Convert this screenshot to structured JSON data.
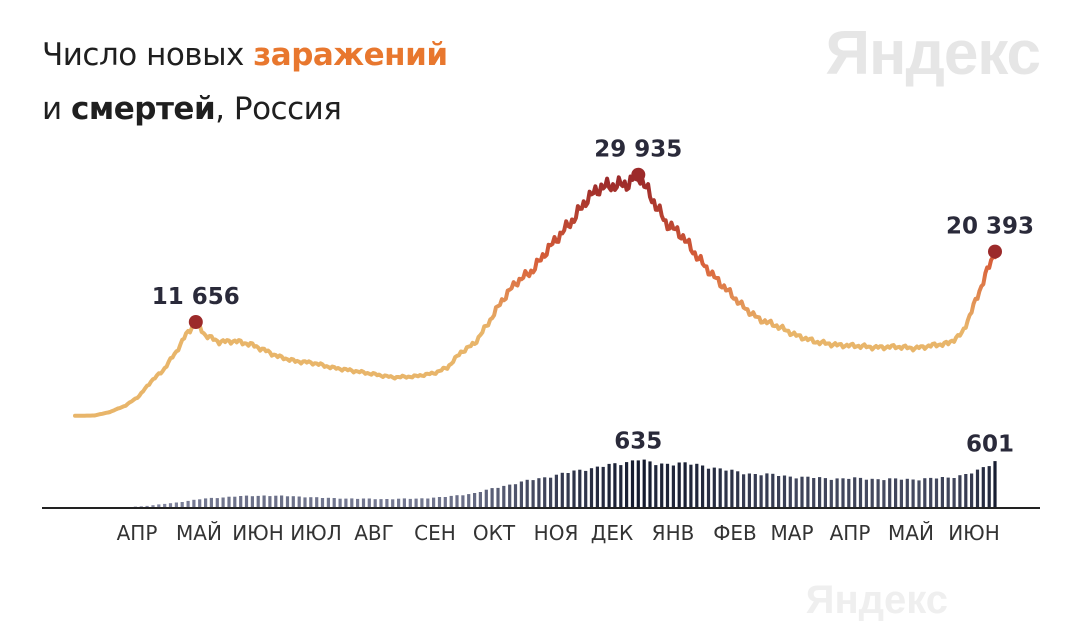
{
  "title": {
    "line1_prefix": "Число новых ",
    "line1_highlight": "заражений",
    "line2_prefix": "и ",
    "line2_highlight": "смертей",
    "line2_suffix": ", Россия"
  },
  "logo": "Яндекс",
  "colors": {
    "low": "#e8b56a",
    "mid": "#d9613a",
    "high": "#9c2a2a",
    "deaths_low": "#8a8ea8",
    "deaths_high": "#141a2e",
    "axis": "#222222"
  },
  "chart_data": {
    "type": "line",
    "x_ticks": [
      "АПР",
      "МАЙ",
      "ИЮН",
      "ИЮЛ",
      "АВГ",
      "СЕН",
      "ОКТ",
      "НОЯ",
      "ДЕК",
      "ЯНВ",
      "ФЕВ",
      "МАР",
      "АПР",
      "МАЙ",
      "ИЮН"
    ],
    "series": [
      {
        "name": "заражений",
        "type": "line",
        "points": [
          [
            "2020-03-10",
            20
          ],
          [
            "2020-03-20",
            60
          ],
          [
            "2020-03-28",
            500
          ],
          [
            "2020-04-05",
            1300
          ],
          [
            "2020-04-12",
            2500
          ],
          [
            "2020-04-18",
            4300
          ],
          [
            "2020-04-24",
            5600
          ],
          [
            "2020-05-01",
            8000
          ],
          [
            "2020-05-06",
            10100
          ],
          [
            "2020-05-11",
            11656
          ],
          [
            "2020-05-16",
            10000
          ],
          [
            "2020-05-23",
            9200
          ],
          [
            "2020-05-31",
            9300
          ],
          [
            "2020-06-08",
            8900
          ],
          [
            "2020-06-15",
            8200
          ],
          [
            "2020-06-22",
            7400
          ],
          [
            "2020-07-01",
            6800
          ],
          [
            "2020-07-10",
            6600
          ],
          [
            "2020-07-20",
            6000
          ],
          [
            "2020-07-31",
            5600
          ],
          [
            "2020-08-10",
            5200
          ],
          [
            "2020-08-20",
            4800
          ],
          [
            "2020-08-31",
            4900
          ],
          [
            "2020-09-10",
            5300
          ],
          [
            "2020-09-17",
            6000
          ],
          [
            "2020-09-24",
            7900
          ],
          [
            "2020-10-01",
            9000
          ],
          [
            "2020-10-08",
            11500
          ],
          [
            "2020-10-15",
            14300
          ],
          [
            "2020-10-22",
            16500
          ],
          [
            "2020-10-31",
            18100
          ],
          [
            "2020-11-07",
            20500
          ],
          [
            "2020-11-14",
            22500
          ],
          [
            "2020-11-21",
            24500
          ],
          [
            "2020-11-28",
            27000
          ],
          [
            "2020-12-05",
            28400
          ],
          [
            "2020-12-12",
            28600
          ],
          [
            "2020-12-19",
            28800
          ],
          [
            "2020-12-24",
            29935
          ],
          [
            "2020-12-31",
            27000
          ],
          [
            "2021-01-07",
            24000
          ],
          [
            "2021-01-15",
            22500
          ],
          [
            "2021-01-24",
            19500
          ],
          [
            "2021-01-31",
            17500
          ],
          [
            "2021-02-08",
            15500
          ],
          [
            "2021-02-16",
            13500
          ],
          [
            "2021-02-24",
            12000
          ],
          [
            "2021-03-05",
            11200
          ],
          [
            "2021-03-15",
            10000
          ],
          [
            "2021-03-25",
            9200
          ],
          [
            "2021-04-05",
            8800
          ],
          [
            "2021-04-15",
            8700
          ],
          [
            "2021-04-25",
            8500
          ],
          [
            "2021-05-05",
            8600
          ],
          [
            "2021-05-15",
            8400
          ],
          [
            "2021-05-25",
            8800
          ],
          [
            "2021-06-01",
            9000
          ],
          [
            "2021-06-08",
            10200
          ],
          [
            "2021-06-13",
            13000
          ],
          [
            "2021-06-17",
            15500
          ],
          [
            "2021-06-21",
            18000
          ],
          [
            "2021-06-25",
            20393
          ]
        ],
        "labels": [
          {
            "x": "2020-05-11",
            "value": "11 656"
          },
          {
            "x": "2020-12-24",
            "value": "29 935"
          },
          {
            "x": "2021-06-25",
            "value": "20 393"
          }
        ],
        "ylim": [
          0,
          33000
        ]
      },
      {
        "name": "смертей",
        "type": "bar",
        "points": [
          [
            "2020-04-01",
            5
          ],
          [
            "2020-04-15",
            25
          ],
          [
            "2020-05-01",
            70
          ],
          [
            "2020-05-15",
            120
          ],
          [
            "2020-06-01",
            150
          ],
          [
            "2020-06-15",
            160
          ],
          [
            "2020-07-01",
            150
          ],
          [
            "2020-07-15",
            130
          ],
          [
            "2020-08-01",
            120
          ],
          [
            "2020-08-15",
            115
          ],
          [
            "2020-09-01",
            120
          ],
          [
            "2020-09-15",
            140
          ],
          [
            "2020-10-01",
            190
          ],
          [
            "2020-10-15",
            280
          ],
          [
            "2020-11-01",
            370
          ],
          [
            "2020-11-15",
            440
          ],
          [
            "2020-12-01",
            520
          ],
          [
            "2020-12-15",
            570
          ],
          [
            "2020-12-24",
            635
          ],
          [
            "2021-01-01",
            560
          ],
          [
            "2021-01-15",
            580
          ],
          [
            "2021-02-01",
            520
          ],
          [
            "2021-02-15",
            450
          ],
          [
            "2021-03-01",
            430
          ],
          [
            "2021-03-15",
            400
          ],
          [
            "2021-04-01",
            380
          ],
          [
            "2021-04-15",
            380
          ],
          [
            "2021-05-01",
            370
          ],
          [
            "2021-05-15",
            370
          ],
          [
            "2021-06-01",
            390
          ],
          [
            "2021-06-15",
            460
          ],
          [
            "2021-06-25",
            601
          ]
        ],
        "labels": [
          {
            "x": "2020-12-24",
            "value": "635"
          },
          {
            "x": "2021-06-25",
            "value": "601"
          }
        ],
        "ylim": [
          0,
          720
        ]
      }
    ],
    "x_range": [
      "2020-03-10",
      "2021-07-12"
    ],
    "legend": "none",
    "grid": false
  }
}
